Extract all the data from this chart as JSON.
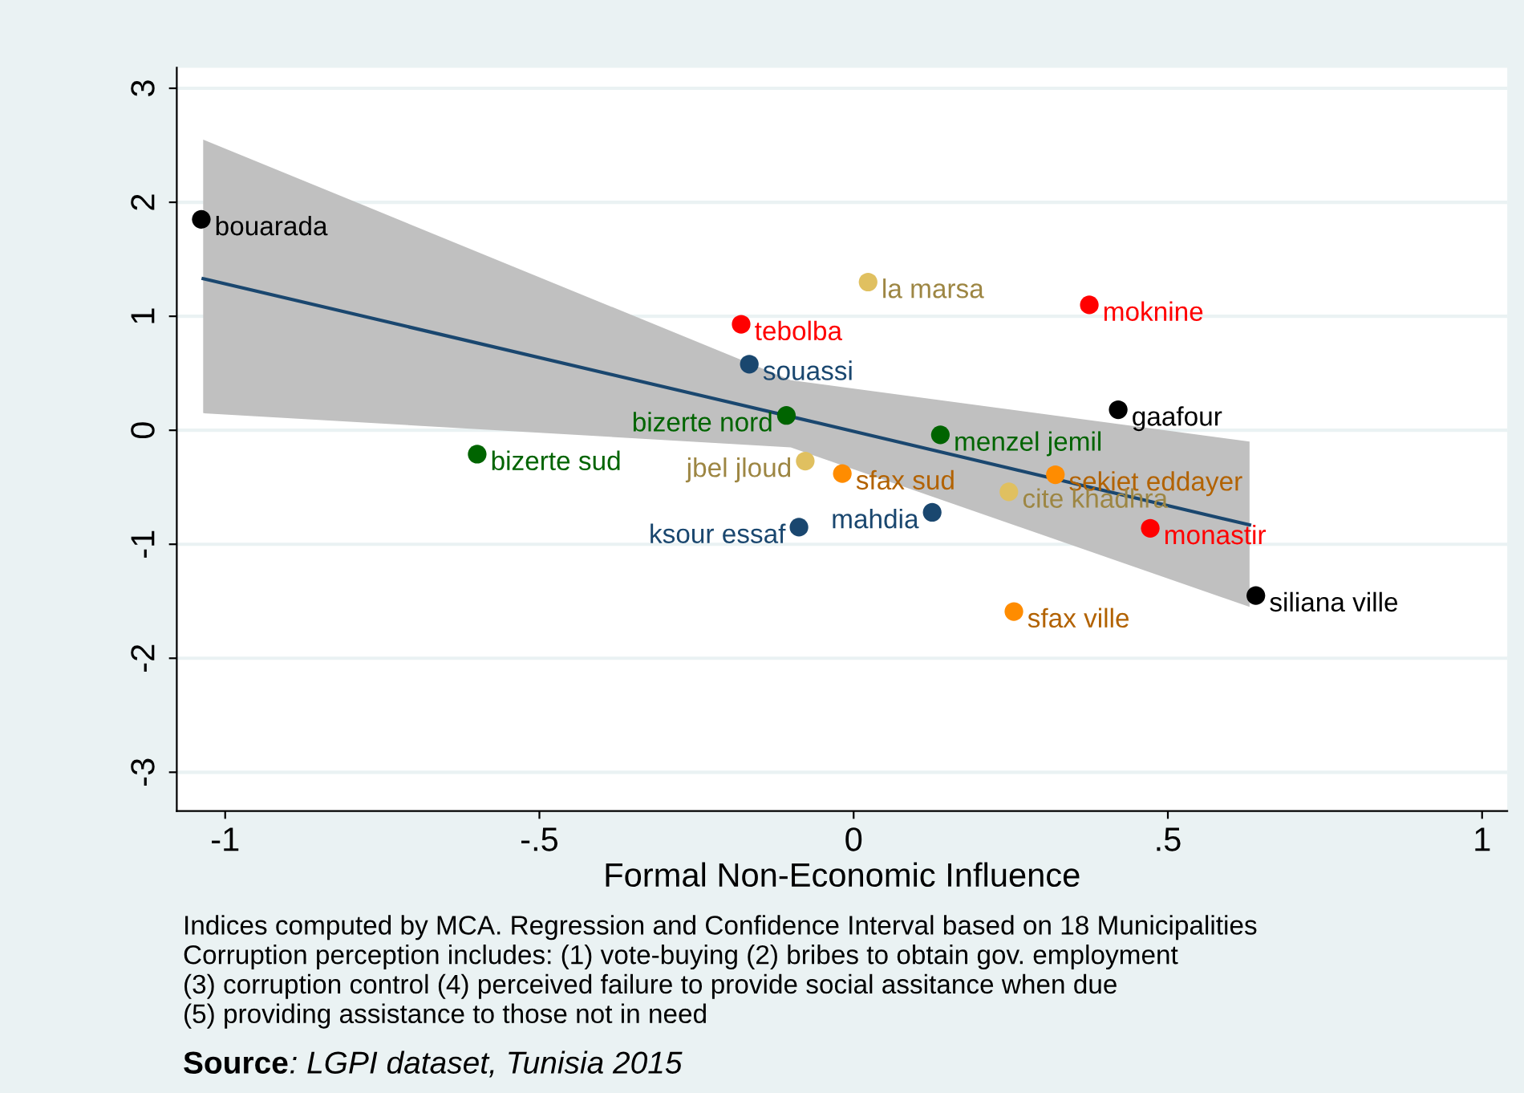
{
  "chart_data": {
    "type": "scatter",
    "xlabel": "Formal Non-Economic Influence",
    "xlim": [
      -1.077,
      1.04
    ],
    "ylim": [
      -3.34,
      3.18
    ],
    "xticks": [
      -1,
      {
        "value": -0.5,
        "label": "-.5"
      },
      0,
      {
        "value": 0.5,
        "label": ".5"
      },
      1
    ],
    "yticks": [
      -3,
      -2,
      -1,
      0,
      1,
      2,
      3
    ],
    "grid": "y",
    "legend": false,
    "series": [
      {
        "type": "line",
        "color": "#1a476f",
        "x": [
          -1.035,
          -0.1,
          0.63
        ],
        "values": [
          1.33,
          0.12,
          -0.83
        ],
        "lower": [
          0.15,
          -0.15,
          -1.55
        ],
        "upper": [
          2.55,
          0.44,
          -0.1
        ]
      },
      {
        "marker": "circle",
        "x": [
          -1.038,
          0.023,
          0.375,
          -0.179,
          -0.166,
          0.421,
          -0.107,
          0.138,
          -0.599,
          -0.077,
          -0.018,
          0.321,
          0.247,
          0.125,
          -0.087,
          0.472,
          0.255,
          0.64
        ],
        "values": [
          1.85,
          1.3,
          1.1,
          0.93,
          0.58,
          0.18,
          0.13,
          -0.04,
          -0.21,
          -0.27,
          -0.38,
          -0.39,
          -0.54,
          -0.72,
          -0.85,
          -0.86,
          -1.59,
          -1.45
        ],
        "colors": [
          "#000000",
          "#e0c060",
          "#ff0000",
          "#ff0000",
          "#1a476f",
          "#000000",
          "#006400",
          "#006400",
          "#006400",
          "#e0c060",
          "#ff8c00",
          "#ff8c00",
          "#e0c060",
          "#1a476f",
          "#1a476f",
          "#ff0000",
          "#ff8c00",
          "#000000"
        ]
      }
    ],
    "annotations": [
      {
        "text": "bouarada",
        "x": -1.038,
        "y": 1.85
      },
      {
        "text": "la marsa",
        "x": 0.023,
        "y": 1.3
      },
      {
        "text": "moknine",
        "x": 0.375,
        "y": 1.1
      },
      {
        "text": "tebolba",
        "x": -0.179,
        "y": 0.93
      },
      {
        "text": "souassi",
        "x": -0.166,
        "y": 0.58
      },
      {
        "text": "gaafour",
        "x": 0.421,
        "y": 0.18
      },
      {
        "text": "bizerte nord",
        "x": -0.107,
        "y": 0.13
      },
      {
        "text": "menzel jemil",
        "x": 0.138,
        "y": -0.04
      },
      {
        "text": "bizerte sud",
        "x": -0.599,
        "y": -0.21
      },
      {
        "text": "jbel jloud",
        "x": -0.077,
        "y": -0.27
      },
      {
        "text": "sfax sud",
        "x": -0.018,
        "y": -0.38
      },
      {
        "text": "sekiet eddayer",
        "x": 0.321,
        "y": -0.39
      },
      {
        "text": "cite khadhra",
        "x": 0.247,
        "y": -0.54
      },
      {
        "text": "mahdia",
        "x": 0.125,
        "y": -0.72
      },
      {
        "text": "ksour essaf",
        "x": -0.087,
        "y": -0.85
      },
      {
        "text": "monastir",
        "x": 0.472,
        "y": -0.86
      },
      {
        "text": "sfax ville",
        "x": 0.255,
        "y": -1.59
      },
      {
        "text": "siliana ville",
        "x": 0.64,
        "y": -1.45
      },
      "Indices computed by MCA. Regression and Confidence Interval based on 18 Municipalities",
      "Corruption perception includes: (1) vote-buying (2) bribes to obtain gov. employment",
      "(3) corruption control (4) perceived failure to provide social assitance when due",
      "(5) providing assistance to those not in need",
      "Source: LGPI dataset, Tunisia 2015"
    ]
  }
}
